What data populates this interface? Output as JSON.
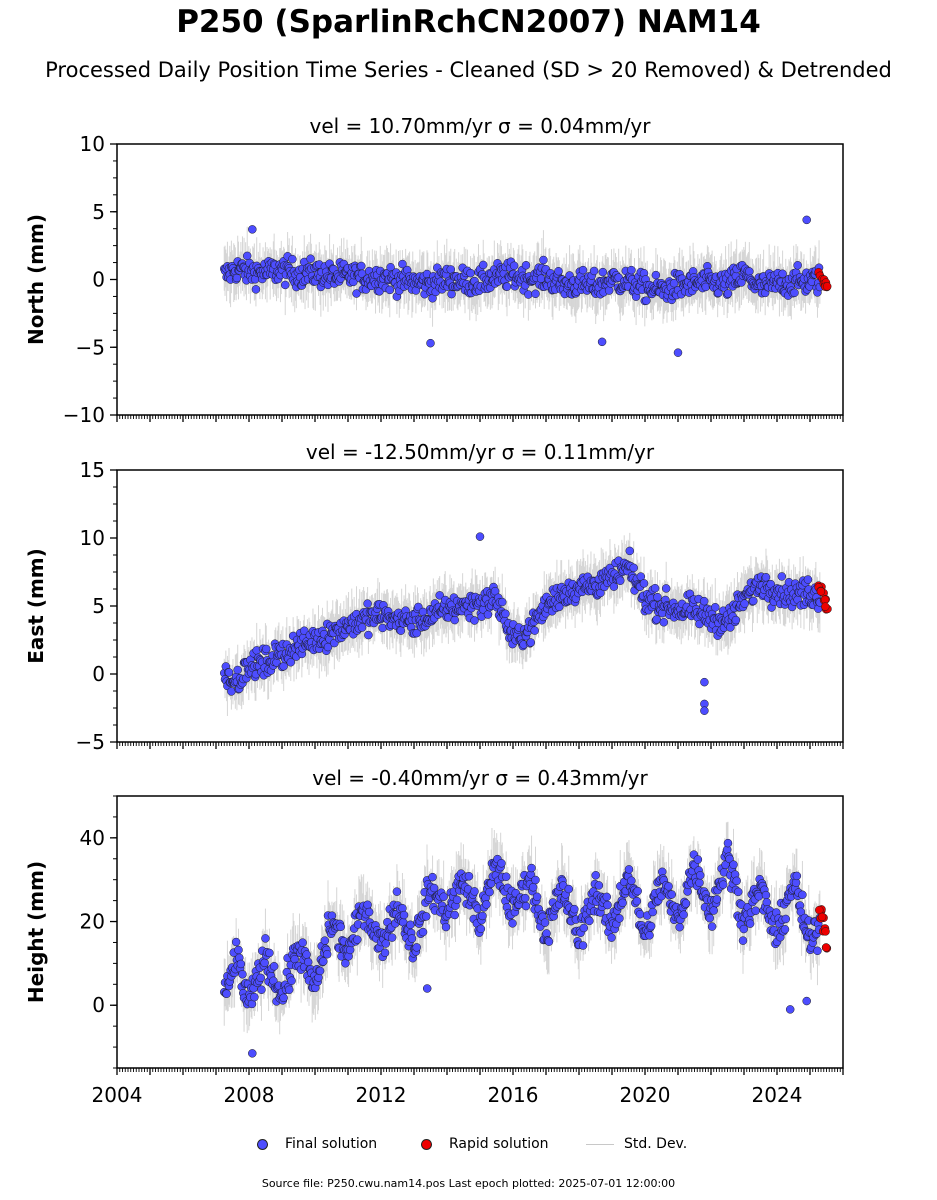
{
  "page": {
    "title": "P250 (SparlinRchCN2007) NAM14",
    "subtitle": "Processed Daily Position Time Series - Cleaned (SD > 20 Removed) & Detrended",
    "footer": "Source file: P250.cwu.nam14.pos  Last epoch plotted: 2025-07-01 12:00:00"
  },
  "legend": {
    "final": "Final solution",
    "rapid": "Rapid solution",
    "stddev": "Std. Dev."
  },
  "colors": {
    "final": "#4d4dff",
    "rapid": "#ee0000",
    "errorbar": "#b4b4b4",
    "outline": "#1a1a1a"
  },
  "chart_data": [
    {
      "type": "scatter",
      "panel": "north",
      "title": "vel = 10.70mm/yr   σ = 0.04mm/yr",
      "ylabel": "North (mm)",
      "ylim": [
        -10,
        10
      ],
      "yticks": [
        10,
        5,
        0,
        -5,
        -10
      ],
      "xlim": [
        2004.0,
        2026.0
      ],
      "x_range": [
        2007.25,
        2025.5
      ],
      "series": [
        {
          "type": "final",
          "x": [
            2007.3,
            2007.6,
            2008.0,
            2008.5,
            2009.0,
            2009.5,
            2010.0,
            2010.5,
            2011.0,
            2011.5,
            2012.0,
            2012.5,
            2013.0,
            2013.5,
            2014.0,
            2014.5,
            2015.0,
            2015.5,
            2016.0,
            2016.5,
            2017.0,
            2017.5,
            2018.0,
            2018.5,
            2019.0,
            2019.5,
            2020.0,
            2020.5,
            2021.0,
            2021.5,
            2022.0,
            2022.5,
            2023.0,
            2023.5,
            2024.0,
            2024.5,
            2025.0,
            2025.3
          ],
          "y": [
            0.3,
            0.8,
            0.6,
            0.5,
            0.7,
            0.4,
            0.5,
            0.2,
            0.3,
            0.1,
            0.2,
            0.0,
            -0.2,
            -0.3,
            0.0,
            -0.1,
            -0.2,
            0.2,
            0.3,
            0.1,
            0.2,
            -0.4,
            -0.3,
            -0.5,
            0.0,
            -0.2,
            -0.6,
            -0.8,
            -0.5,
            -0.3,
            -0.2,
            -0.4,
            0.4,
            -0.6,
            -0.3,
            -0.2,
            -0.1,
            0.0
          ]
        },
        {
          "type": "rapid",
          "x": [
            2025.32,
            2025.38,
            2025.44,
            2025.5
          ],
          "y": [
            0.4,
            0.1,
            -0.3,
            -0.6
          ]
        }
      ],
      "outliers": [
        [
          2008.1,
          3.7
        ],
        [
          2013.5,
          -4.7
        ],
        [
          2018.7,
          -4.6
        ],
        [
          2021.0,
          -5.4
        ],
        [
          2024.9,
          4.4
        ]
      ]
    },
    {
      "type": "scatter",
      "panel": "east",
      "title": "vel = -12.50mm/yr   σ = 0.11mm/yr",
      "ylabel": "East (mm)",
      "ylim": [
        -5,
        15
      ],
      "yticks": [
        15,
        10,
        5,
        0,
        -5
      ],
      "xlim": [
        2004.0,
        2026.0
      ],
      "x_range": [
        2007.25,
        2025.5
      ],
      "series": [
        {
          "type": "final",
          "x": [
            2007.3,
            2007.6,
            2008.0,
            2008.5,
            2009.0,
            2009.5,
            2010.0,
            2010.5,
            2011.0,
            2011.5,
            2012.0,
            2012.5,
            2013.0,
            2013.5,
            2014.0,
            2014.5,
            2015.0,
            2015.5,
            2016.0,
            2016.5,
            2017.0,
            2017.5,
            2018.0,
            2018.5,
            2019.0,
            2019.5,
            2020.0,
            2020.5,
            2021.0,
            2021.5,
            2022.0,
            2022.5,
            2023.0,
            2023.5,
            2024.0,
            2024.5,
            2025.0,
            2025.3
          ],
          "y": [
            0.0,
            -0.5,
            0.5,
            0.8,
            1.5,
            2.0,
            2.5,
            3.0,
            3.6,
            4.0,
            4.3,
            4.0,
            3.8,
            4.2,
            4.8,
            5.0,
            5.2,
            5.6,
            2.5,
            3.2,
            5.0,
            6.0,
            6.3,
            6.6,
            7.0,
            7.8,
            5.6,
            5.0,
            4.8,
            4.6,
            4.2,
            3.8,
            5.5,
            6.7,
            6.2,
            5.8,
            6.0,
            5.6
          ]
        },
        {
          "type": "rapid",
          "x": [
            2025.32,
            2025.38,
            2025.44,
            2025.5
          ],
          "y": [
            6.4,
            6.0,
            5.4,
            4.9
          ]
        }
      ],
      "outliers": [
        [
          2015.0,
          10.1
        ],
        [
          2021.8,
          -2.2
        ],
        [
          2021.8,
          -2.7
        ],
        [
          2021.8,
          -0.6
        ]
      ]
    },
    {
      "type": "scatter",
      "panel": "height",
      "title": "vel = -0.40mm/yr   σ = 0.43mm/yr",
      "ylabel": "Height (mm)",
      "ylim": [
        -15,
        50
      ],
      "yticks": [
        40,
        20,
        0
      ],
      "xlim": [
        2004.0,
        2026.0
      ],
      "x_range": [
        2007.25,
        2025.5
      ],
      "xticks": [
        2004,
        2008,
        2012,
        2016,
        2020,
        2024
      ],
      "series": [
        {
          "type": "final",
          "x": [
            2007.3,
            2007.6,
            2008.0,
            2008.5,
            2009.0,
            2009.5,
            2010.0,
            2010.5,
            2011.0,
            2011.5,
            2012.0,
            2012.5,
            2013.0,
            2013.5,
            2014.0,
            2014.5,
            2015.0,
            2015.5,
            2016.0,
            2016.5,
            2017.0,
            2017.5,
            2018.0,
            2018.5,
            2019.0,
            2019.5,
            2020.0,
            2020.5,
            2021.0,
            2021.5,
            2022.0,
            2022.5,
            2023.0,
            2023.5,
            2024.0,
            2024.5,
            2025.0,
            2025.3
          ],
          "y": [
            2,
            12,
            0,
            12,
            2,
            14,
            4,
            20,
            12,
            24,
            14,
            24,
            14,
            28,
            22,
            30,
            20,
            34,
            22,
            31,
            17,
            28,
            16,
            28,
            18,
            32,
            16,
            30,
            20,
            34,
            22,
            36,
            20,
            28,
            16,
            30,
            14,
            20
          ]
        },
        {
          "type": "rapid",
          "x": [
            2025.32,
            2025.38,
            2025.44,
            2025.5
          ],
          "y": [
            23,
            21,
            18,
            14
          ]
        }
      ],
      "outliers": [
        [
          2008.1,
          -11.5
        ],
        [
          2013.4,
          4.0
        ],
        [
          2024.4,
          -1.0
        ],
        [
          2024.9,
          1.0
        ]
      ]
    }
  ]
}
